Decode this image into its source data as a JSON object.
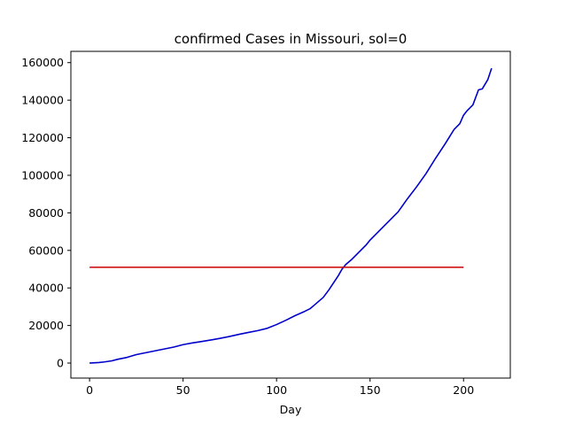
{
  "chart_data": {
    "type": "line",
    "title": "confirmed Cases in Missouri, sol=0",
    "xlabel": "Day",
    "ylabel": "",
    "xlim": [
      -10,
      225
    ],
    "ylim": [
      -8000,
      166000
    ],
    "xticks": [
      0,
      50,
      100,
      150,
      200
    ],
    "yticks": [
      0,
      20000,
      40000,
      60000,
      80000,
      100000,
      120000,
      140000,
      160000
    ],
    "grid": false,
    "series": [
      {
        "color": "#0000cc",
        "x": [
          0,
          5,
          8,
          12,
          15,
          20,
          22,
          25,
          30,
          35,
          40,
          45,
          50,
          55,
          60,
          65,
          70,
          75,
          80,
          85,
          90,
          95,
          100,
          105,
          110,
          115,
          118,
          120,
          125,
          128,
          130,
          133,
          135,
          137,
          140,
          143,
          145,
          148,
          150,
          155,
          160,
          165,
          170,
          175,
          180,
          185,
          190,
          195,
          198,
          200,
          202,
          205,
          208,
          210,
          213,
          215
        ],
        "y": [
          0,
          300,
          600,
          1200,
          2000,
          3000,
          3600,
          4500,
          5500,
          6500,
          7500,
          8500,
          9800,
          10700,
          11500,
          12300,
          13200,
          14200,
          15300,
          16300,
          17300,
          18500,
          20500,
          22800,
          25300,
          27500,
          29000,
          30700,
          35000,
          39000,
          42000,
          46500,
          50000,
          52500,
          55000,
          58000,
          60000,
          63000,
          65500,
          70500,
          75500,
          80500,
          87500,
          94000,
          101000,
          109000,
          116500,
          124500,
          127500,
          132000,
          134500,
          137500,
          145500,
          146000,
          151000,
          157000
        ]
      },
      {
        "color": "#cc0000",
        "x": [
          0,
          200
        ],
        "y": [
          51000,
          51000
        ]
      }
    ]
  }
}
